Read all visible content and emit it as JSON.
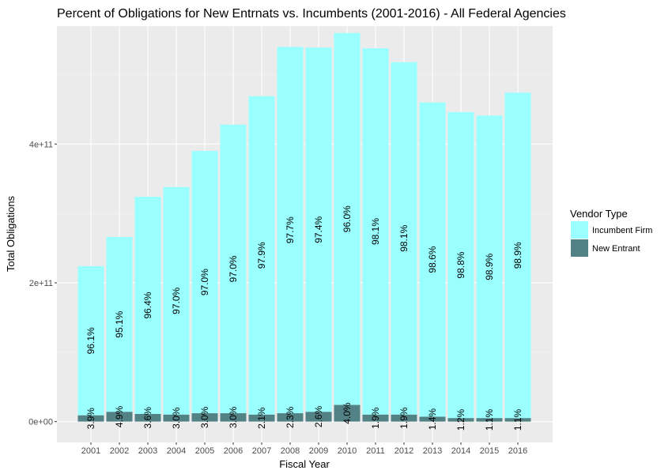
{
  "chart_data": {
    "type": "bar",
    "stacked": true,
    "title": "Percent of Obligations for New Entrnats vs. Incumbents (2001-2016) - All Federal Agencies",
    "xlabel": "Fiscal Year",
    "ylabel": "Total Obligations",
    "categories": [
      "2001",
      "2002",
      "2003",
      "2004",
      "2005",
      "2006",
      "2007",
      "2008",
      "2009",
      "2010",
      "2011",
      "2012",
      "2013",
      "2014",
      "2015",
      "2016"
    ],
    "ylim": [
      -30000000000,
      570000000000
    ],
    "yticks": [
      0,
      200000000000,
      400000000000
    ],
    "ytick_labels": [
      "0e+00",
      "2e+11",
      "4e+11"
    ],
    "grid": true,
    "series": [
      {
        "name": "Incumbent Firm",
        "color": "#99FFFF",
        "values": [
          215000000000,
          252000000000,
          313000000000,
          328000000000,
          378000000000,
          416000000000,
          459000000000,
          528000000000,
          525000000000,
          536000000000,
          528000000000,
          508000000000,
          453000000000,
          441000000000,
          436000000000,
          469000000000
        ],
        "labels": [
          "96.1%",
          "95.1%",
          "96.4%",
          "97.0%",
          "97.0%",
          "97.0%",
          "97.9%",
          "97.7%",
          "97.4%",
          "96.0%",
          "98.1%",
          "98.1%",
          "98.6%",
          "98.8%",
          "98.9%",
          "98.9%"
        ]
      },
      {
        "name": "New Entrant",
        "color": "#528285",
        "values": [
          9000000000,
          14000000000,
          11000000000,
          10000000000,
          12000000000,
          12000000000,
          10000000000,
          12000000000,
          14000000000,
          24000000000,
          10000000000,
          10000000000,
          7000000000,
          5000000000,
          5000000000,
          5000000000
        ],
        "labels": [
          "3.9%",
          "4.9%",
          "3.6%",
          "3.0%",
          "3.0%",
          "3.0%",
          "2.1%",
          "2.3%",
          "2.6%",
          "4.0%",
          "1.9%",
          "1.9%",
          "1.4%",
          "1.2%",
          "1.1%",
          "1.1%"
        ]
      }
    ],
    "legend": {
      "title": "Vendor Type",
      "position": "right"
    }
  }
}
